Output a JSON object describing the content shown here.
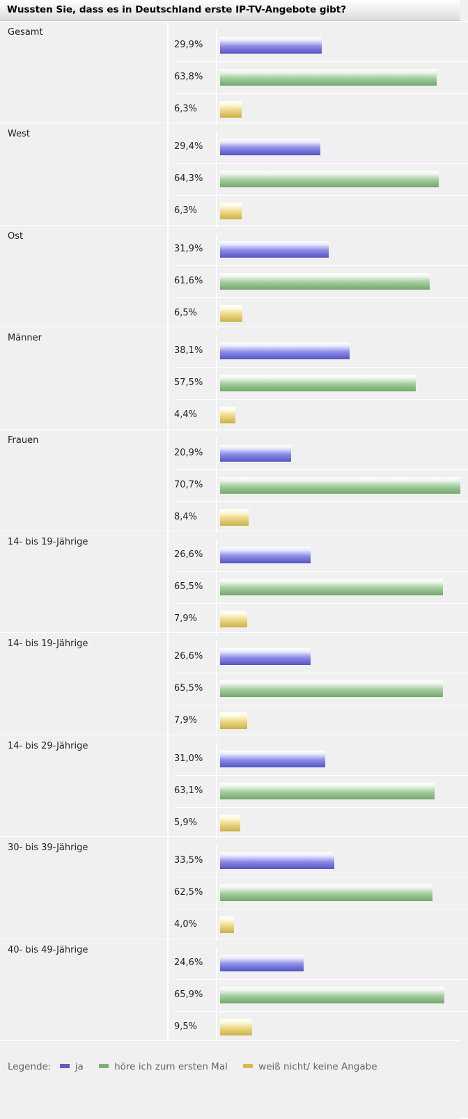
{
  "chart_data": {
    "type": "bar",
    "orientation": "horizontal",
    "title": "Wussten Sie, dass es in Deutschland erste IP-TV-Angebote gibt?",
    "unit": "%",
    "colors": {
      "ja": "#5f5fc8",
      "neu": "#7faf79",
      "weiss": "#d4bb57"
    },
    "legend": {
      "label": "Legende:",
      "placement": "bottom",
      "entries": [
        {
          "key": "ja",
          "label": "ja"
        },
        {
          "key": "neu",
          "label": "höre ich zum ersten Mal"
        },
        {
          "key": "weiss",
          "label": "weiß nicht/ keine Angabe"
        }
      ]
    },
    "groups": [
      {
        "label": "Gesamt",
        "values": [
          29.9,
          63.8,
          6.3
        ],
        "labels": [
          "29,9%",
          "63,8%",
          "6,3%"
        ]
      },
      {
        "label": "West",
        "values": [
          29.4,
          64.3,
          6.3
        ],
        "labels": [
          "29,4%",
          "64,3%",
          "6,3%"
        ]
      },
      {
        "label": "Ost",
        "values": [
          31.9,
          61.6,
          6.5
        ],
        "labels": [
          "31,9%",
          "61,6%",
          "6,5%"
        ]
      },
      {
        "label": "Männer",
        "values": [
          38.1,
          57.5,
          4.4
        ],
        "labels": [
          "38,1%",
          "57,5%",
          "4,4%"
        ]
      },
      {
        "label": "Frauen",
        "values": [
          20.9,
          70.7,
          8.4
        ],
        "labels": [
          "20,9%",
          "70,7%",
          "8,4%"
        ]
      },
      {
        "label": "14- bis 19-Jährige",
        "values": [
          26.6,
          65.5,
          7.9
        ],
        "labels": [
          "26,6%",
          "65,5%",
          "7,9%"
        ]
      },
      {
        "label": "14- bis 19-Jährige",
        "values": [
          26.6,
          65.5,
          7.9
        ],
        "labels": [
          "26,6%",
          "65,5%",
          "7,9%"
        ]
      },
      {
        "label": "14- bis 29-Jährige",
        "values": [
          31.0,
          63.1,
          5.9
        ],
        "labels": [
          "31,0%",
          "63,1%",
          "5,9%"
        ]
      },
      {
        "label": "30- bis 39-Jährige",
        "values": [
          33.5,
          62.5,
          4.0
        ],
        "labels": [
          "33,5%",
          "62,5%",
          "4,0%"
        ]
      },
      {
        "label": "40- bis 49-Jährige",
        "values": [
          24.6,
          65.9,
          9.5
        ],
        "labels": [
          "24,6%",
          "65,9%",
          "9,5%"
        ]
      }
    ]
  }
}
